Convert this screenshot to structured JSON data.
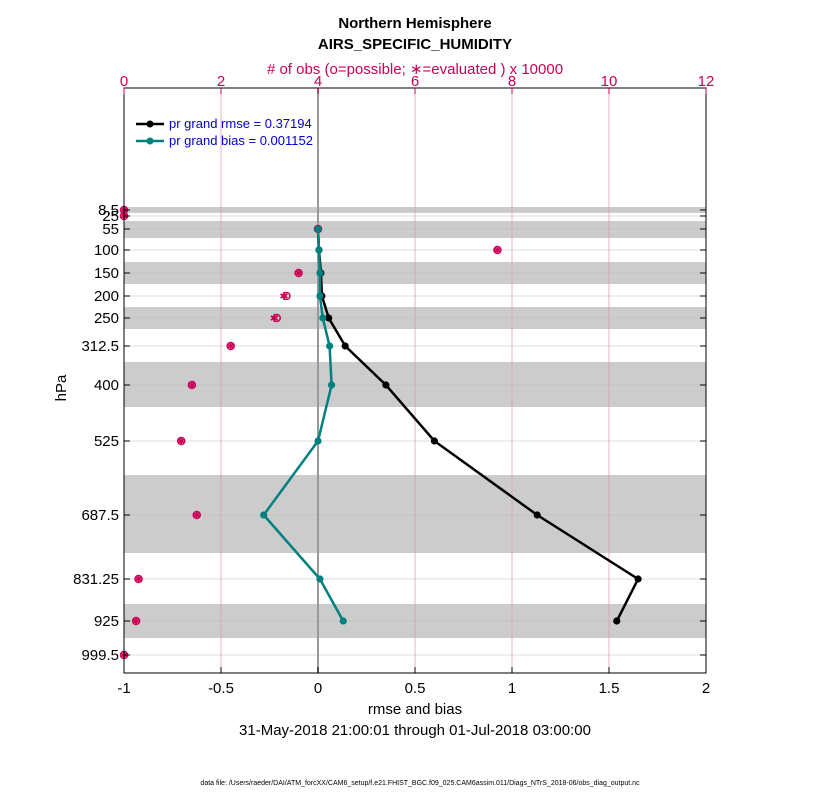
{
  "chart_data": {
    "type": "line",
    "title": "Northern Hemisphere",
    "subtitle": "AIRS_SPECIFIC_HUMIDITY",
    "top_axis_label": "# of obs (o=possible; ∗=evaluated ) x 10000",
    "xlabel": "rmse and bias",
    "ylabel": "hPa",
    "date_range": "31-May-2018 21:00:01 through 01-Jul-2018 03:00:00",
    "footnote": "data file: /Users/raeder/DAI/ATM_forcXX/CAM6_setup/f.e21.FHIST_BGC.f09_025.CAM6assim.011/Diags_NTrS_2018-06/obs_diag_output.nc",
    "xlim": [
      -1,
      2
    ],
    "xticks": [
      -1,
      -0.5,
      0,
      0.5,
      1,
      1.5,
      2
    ],
    "xtick_labels": [
      "-1",
      "-0.5",
      "0",
      "0.5",
      "1",
      "1.5",
      "2"
    ],
    "top_xlim": [
      0,
      12
    ],
    "top_xticks": [
      0,
      2,
      4,
      6,
      8,
      10,
      12
    ],
    "top_xtick_labels": [
      "0",
      "2",
      "4",
      "6",
      "8",
      "10",
      "12"
    ],
    "y_levels": [
      8.5,
      25,
      55,
      100,
      150,
      200,
      250,
      312.5,
      400,
      525,
      687.5,
      831.25,
      925,
      999.5
    ],
    "y_labels": [
      "8.5",
      "25",
      "55",
      "100",
      "150",
      "200",
      "250",
      "312.5",
      "400",
      "525",
      "687.5",
      "831.25",
      "925",
      "999.5"
    ],
    "series": [
      {
        "name": "pr grand rmse = 0.37194",
        "color": "#000000",
        "levels": [
          55,
          100,
          150,
          200,
          250,
          312.5,
          400,
          525,
          687.5,
          831.25,
          925
        ],
        "values": [
          0.0,
          0.005,
          0.015,
          0.02,
          0.055,
          0.14,
          0.35,
          0.6,
          1.13,
          1.65,
          1.54
        ]
      },
      {
        "name": "pr grand bias = 0.001152",
        "color": "#008080",
        "levels": [
          55,
          100,
          150,
          200,
          250,
          312.5,
          400,
          525,
          687.5,
          831.25,
          925
        ],
        "values": [
          0.0,
          0.005,
          0.01,
          0.01,
          0.025,
          0.06,
          0.07,
          0.0,
          -0.28,
          0.01,
          0.13
        ]
      }
    ],
    "obs_counts": {
      "color": "#cc0055",
      "levels": [
        8.5,
        25,
        55,
        100,
        150,
        200,
        250,
        312.5,
        400,
        525,
        687.5,
        831.25,
        925,
        999.5
      ],
      "possible": [
        0.0,
        0.0,
        4.0,
        7.7,
        3.6,
        3.35,
        3.15,
        2.2,
        1.4,
        1.18,
        1.5,
        0.3,
        0.25,
        0.0
      ],
      "evaluated": [
        0.0,
        0.0,
        4.0,
        7.7,
        3.6,
        3.3,
        3.1,
        2.2,
        1.4,
        1.18,
        1.5,
        0.3,
        0.25,
        0.0
      ]
    }
  }
}
